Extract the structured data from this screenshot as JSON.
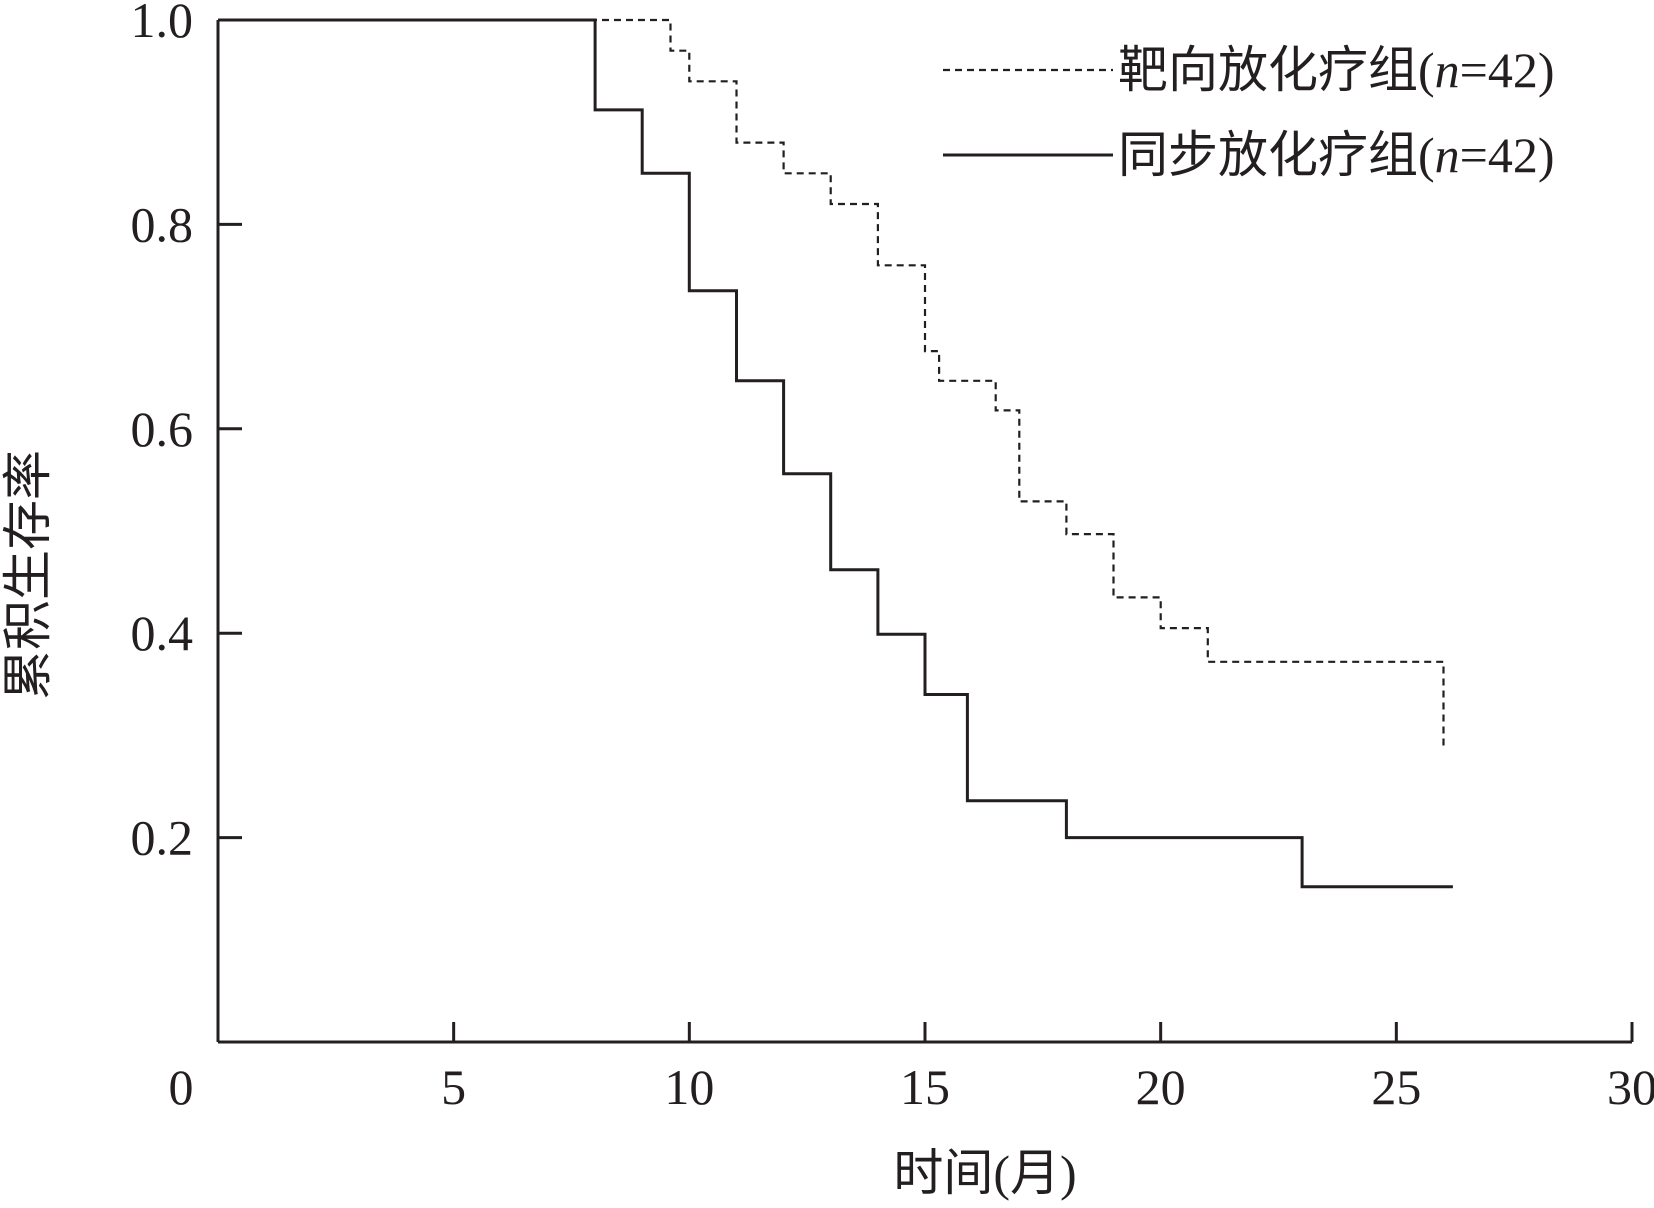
{
  "chart_data": {
    "type": "line",
    "step": true,
    "title": "",
    "xlabel": "时间(月)",
    "ylabel": "累积生存率",
    "xlim": [
      0,
      30
    ],
    "ylim": [
      0,
      1.0
    ],
    "x_ticks": [
      "0",
      "5",
      "10",
      "15",
      "20",
      "25",
      "30"
    ],
    "y_ticks": [
      "0.2",
      "0.4",
      "0.6",
      "0.8",
      "1.0"
    ],
    "grid": false,
    "legend_position": "top-right",
    "series": [
      {
        "name": "靶向放化疗组(n=42)",
        "name_main": "靶向放化疗组(",
        "name_italic": "n",
        "name_tail": "=42)",
        "line_style": "dashed",
        "color": "#231f20",
        "points": [
          [
            0,
            1.0
          ],
          [
            9.6,
            1.0
          ],
          [
            9.6,
            0.97
          ],
          [
            10,
            0.97
          ],
          [
            10,
            0.94
          ],
          [
            11,
            0.94
          ],
          [
            11,
            0.88
          ],
          [
            12,
            0.88
          ],
          [
            12,
            0.85
          ],
          [
            13,
            0.85
          ],
          [
            13,
            0.82
          ],
          [
            14,
            0.82
          ],
          [
            14,
            0.76
          ],
          [
            15,
            0.76
          ],
          [
            15,
            0.676
          ],
          [
            15.3,
            0.676
          ],
          [
            15.3,
            0.647
          ],
          [
            16.5,
            0.647
          ],
          [
            16.5,
            0.618
          ],
          [
            17,
            0.618
          ],
          [
            17,
            0.529
          ],
          [
            18,
            0.529
          ],
          [
            18,
            0.497
          ],
          [
            19,
            0.497
          ],
          [
            19,
            0.435
          ],
          [
            20,
            0.435
          ],
          [
            20,
            0.405
          ],
          [
            21,
            0.405
          ],
          [
            21,
            0.372
          ],
          [
            26,
            0.372
          ],
          [
            26,
            0.288
          ]
        ]
      },
      {
        "name": "同步放化疗组(n=42)",
        "name_main": "同步放化疗组(",
        "name_italic": "n",
        "name_tail": "=42)",
        "line_style": "solid",
        "color": "#231f20",
        "points": [
          [
            0,
            1.0
          ],
          [
            8,
            1.0
          ],
          [
            8,
            0.912
          ],
          [
            9,
            0.912
          ],
          [
            9,
            0.85
          ],
          [
            10,
            0.85
          ],
          [
            10,
            0.735
          ],
          [
            11,
            0.735
          ],
          [
            11,
            0.647
          ],
          [
            12,
            0.647
          ],
          [
            12,
            0.556
          ],
          [
            13,
            0.556
          ],
          [
            13,
            0.462
          ],
          [
            14,
            0.462
          ],
          [
            14,
            0.399
          ],
          [
            15,
            0.399
          ],
          [
            15,
            0.34
          ],
          [
            15.9,
            0.34
          ],
          [
            15.9,
            0.236
          ],
          [
            18,
            0.236
          ],
          [
            18,
            0.2
          ],
          [
            23,
            0.2
          ],
          [
            23,
            0.152
          ],
          [
            26.2,
            0.152
          ]
        ]
      }
    ]
  }
}
